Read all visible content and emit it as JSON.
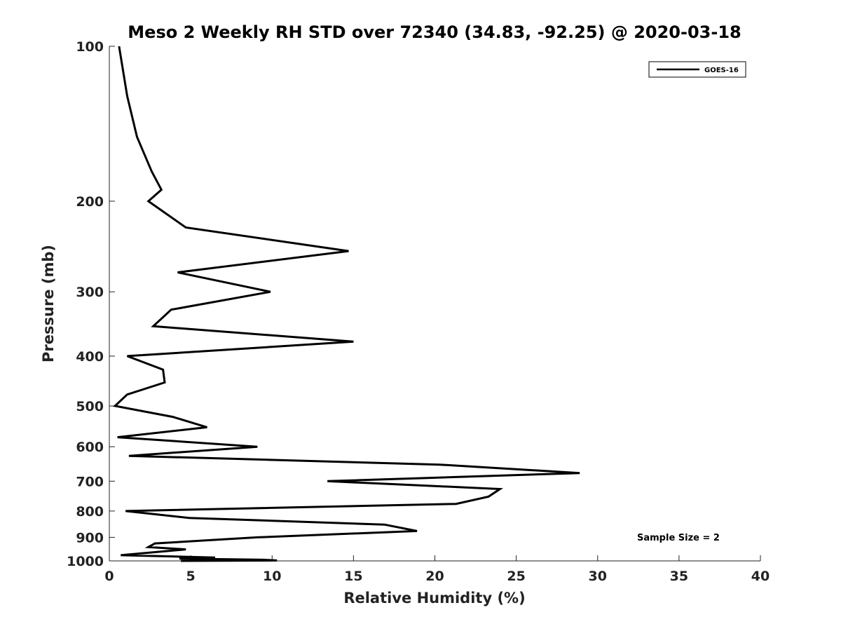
{
  "chart_data": {
    "type": "line",
    "title": "Meso 2 Weekly RH STD over 72340 (34.83, -92.25) @ 2020-03-18",
    "xlabel": "Relative Humidity (%)",
    "ylabel": "Pressure (mb)",
    "xlim": [
      0,
      40
    ],
    "ylim": [
      1000,
      100
    ],
    "yscale": "log",
    "grid": false,
    "legend_position": "top-right",
    "x_ticks": [
      "0",
      "5",
      "10",
      "15",
      "20",
      "25",
      "30",
      "35",
      "40"
    ],
    "y_ticks": [
      "100",
      "200",
      "300",
      "400",
      "500",
      "600",
      "700",
      "800",
      "900",
      "1000"
    ],
    "x_tick_values": [
      0,
      5,
      10,
      15,
      20,
      25,
      30,
      35,
      40
    ],
    "y_tick_values": [
      100,
      200,
      300,
      400,
      500,
      600,
      700,
      800,
      900,
      1000
    ],
    "annotation": "Sample Size = 2",
    "series": [
      {
        "name": "GOES-16",
        "color": "#000000",
        "points": [
          [
            0.6,
            100
          ],
          [
            1.1,
            125
          ],
          [
            1.7,
            150
          ],
          [
            2.6,
            175
          ],
          [
            3.2,
            190
          ],
          [
            2.4,
            200
          ],
          [
            4.7,
            225
          ],
          [
            14.7,
            250
          ],
          [
            4.2,
            275
          ],
          [
            9.9,
            300
          ],
          [
            3.8,
            325
          ],
          [
            2.7,
            350
          ],
          [
            15.0,
            375
          ],
          [
            1.1,
            400
          ],
          [
            3.3,
            425
          ],
          [
            3.4,
            450
          ],
          [
            1.1,
            475
          ],
          [
            0.35,
            500
          ],
          [
            3.9,
            525
          ],
          [
            6.0,
            550
          ],
          [
            0.5,
            575
          ],
          [
            9.1,
            600
          ],
          [
            1.2,
            625
          ],
          [
            20.3,
            650
          ],
          [
            28.9,
            675
          ],
          [
            13.4,
            700
          ],
          [
            24.0,
            725
          ],
          [
            23.3,
            750
          ],
          [
            21.3,
            775
          ],
          [
            1.0,
            800
          ],
          [
            4.9,
            825
          ],
          [
            16.9,
            850
          ],
          [
            18.9,
            875
          ],
          [
            9.1,
            900
          ],
          [
            2.8,
            925
          ],
          [
            2.4,
            940
          ],
          [
            4.7,
            950
          ],
          [
            0.7,
            975
          ],
          [
            6.5,
            985
          ],
          [
            4.3,
            990
          ],
          [
            9.5,
            995
          ],
          [
            10.3,
            998
          ],
          [
            4.4,
            1000
          ]
        ]
      }
    ]
  }
}
